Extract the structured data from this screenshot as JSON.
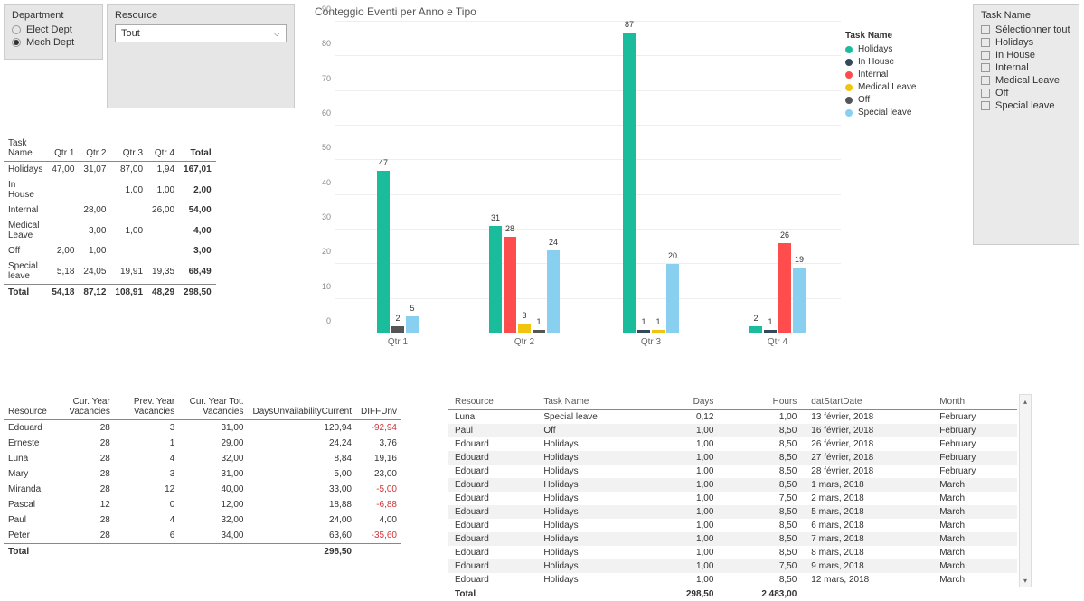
{
  "slicers": {
    "department": {
      "title": "Department",
      "options": [
        {
          "label": "Elect Dept",
          "selected": false
        },
        {
          "label": "Mech Dept",
          "selected": true
        }
      ]
    },
    "resource": {
      "title": "Resource",
      "selected": "Tout"
    },
    "taskname": {
      "title": "Task Name",
      "items": [
        "Sélectionner tout",
        "Holidays",
        "In House",
        "Internal",
        "Medical Leave",
        "Off",
        "Special leave"
      ]
    }
  },
  "pivot": {
    "headers": [
      "Task Name",
      "Qtr 1",
      "Qtr 2",
      "Qtr 3",
      "Qtr 4",
      "Total"
    ],
    "rows": [
      {
        "name": "Holidays",
        "q": [
          "47,00",
          "31,07",
          "87,00",
          "1,94"
        ],
        "total": "167,01"
      },
      {
        "name": "In House",
        "q": [
          "",
          "",
          "1,00",
          "1,00"
        ],
        "total": "2,00"
      },
      {
        "name": "Internal",
        "q": [
          "",
          "28,00",
          "",
          "26,00"
        ],
        "total": "54,00"
      },
      {
        "name": "Medical Leave",
        "q": [
          "",
          "3,00",
          "1,00",
          ""
        ],
        "total": "4,00"
      },
      {
        "name": "Off",
        "q": [
          "2,00",
          "1,00",
          "",
          ""
        ],
        "total": "3,00"
      },
      {
        "name": "Special leave",
        "q": [
          "5,18",
          "24,05",
          "19,91",
          "19,35"
        ],
        "total": "68,49"
      }
    ],
    "total": {
      "name": "Total",
      "q": [
        "54,18",
        "87,12",
        "108,91",
        "48,29"
      ],
      "total": "298,50"
    }
  },
  "vacancies": {
    "headers": [
      "Resource",
      "Cur. Year Vacancies",
      "Prev. Year Vacancies",
      "Cur. Year Tot. Vacancies",
      "DaysUnvailabilityCurrent",
      "DIFFUnv"
    ],
    "rows": [
      {
        "c": [
          "Edouard",
          "28",
          "3",
          "31,00",
          "120,94",
          "-92,94"
        ],
        "neg": [
          5
        ]
      },
      {
        "c": [
          "Erneste",
          "28",
          "1",
          "29,00",
          "24,24",
          "3,76"
        ],
        "neg": []
      },
      {
        "c": [
          "Luna",
          "28",
          "4",
          "32,00",
          "8,84",
          "19,16"
        ],
        "neg": []
      },
      {
        "c": [
          "Mary",
          "28",
          "3",
          "31,00",
          "5,00",
          "23,00"
        ],
        "neg": []
      },
      {
        "c": [
          "Miranda",
          "28",
          "12",
          "40,00",
          "33,00",
          "-5,00"
        ],
        "neg": [
          5
        ]
      },
      {
        "c": [
          "Pascal",
          "12",
          "0",
          "12,00",
          "18,88",
          "-6,88"
        ],
        "neg": [
          5
        ]
      },
      {
        "c": [
          "Paul",
          "28",
          "4",
          "32,00",
          "24,00",
          "4,00"
        ],
        "neg": []
      },
      {
        "c": [
          "Peter",
          "28",
          "6",
          "34,00",
          "63,60",
          "-35,60"
        ],
        "neg": [
          5
        ]
      }
    ],
    "total": {
      "c": [
        "Total",
        "",
        "",
        "",
        "298,50",
        ""
      ]
    }
  },
  "detail": {
    "headers": [
      "Resource",
      "Task Name",
      "Days",
      "Hours",
      "datStartDate",
      "Month"
    ],
    "rows": [
      [
        "Luna",
        "Special leave",
        "0,12",
        "1,00",
        "13 février, 2018",
        "February"
      ],
      [
        "Paul",
        "Off",
        "1,00",
        "8,50",
        "16 février, 2018",
        "February"
      ],
      [
        "Edouard",
        "Holidays",
        "1,00",
        "8,50",
        "26 février, 2018",
        "February"
      ],
      [
        "Edouard",
        "Holidays",
        "1,00",
        "8,50",
        "27 février, 2018",
        "February"
      ],
      [
        "Edouard",
        "Holidays",
        "1,00",
        "8,50",
        "28 février, 2018",
        "February"
      ],
      [
        "Edouard",
        "Holidays",
        "1,00",
        "8,50",
        "1 mars, 2018",
        "March"
      ],
      [
        "Edouard",
        "Holidays",
        "1,00",
        "7,50",
        "2 mars, 2018",
        "March"
      ],
      [
        "Edouard",
        "Holidays",
        "1,00",
        "8,50",
        "5 mars, 2018",
        "March"
      ],
      [
        "Edouard",
        "Holidays",
        "1,00",
        "8,50",
        "6 mars, 2018",
        "March"
      ],
      [
        "Edouard",
        "Holidays",
        "1,00",
        "8,50",
        "7 mars, 2018",
        "March"
      ],
      [
        "Edouard",
        "Holidays",
        "1,00",
        "8,50",
        "8 mars, 2018",
        "March"
      ],
      [
        "Edouard",
        "Holidays",
        "1,00",
        "7,50",
        "9 mars, 2018",
        "March"
      ],
      [
        "Edouard",
        "Holidays",
        "1,00",
        "8,50",
        "12 mars, 2018",
        "March"
      ]
    ],
    "total": [
      "Total",
      "",
      "298,50",
      "2 483,00",
      "",
      ""
    ]
  },
  "chart": {
    "title": "Conteggio Eventi per Anno e Tipo",
    "legend_title": "Task Name",
    "ymax": 90,
    "ytick": 10,
    "colors": {
      "Holidays": "#1abc9c",
      "In House": "#34495e",
      "Internal": "#ff4d4d",
      "Medical Leave": "#f1c40f",
      "Off": "#555555",
      "Special leave": "#89cff0"
    },
    "legend_order": [
      "Holidays",
      "In House",
      "Internal",
      "Medical Leave",
      "Off",
      "Special leave"
    ],
    "quarters": [
      {
        "label": "Qtr 1",
        "bars": [
          {
            "task": "Holidays",
            "v": 47
          },
          {
            "task": "Off",
            "v": 2
          },
          {
            "task": "Special leave",
            "v": 5
          }
        ]
      },
      {
        "label": "Qtr 2",
        "bars": [
          {
            "task": "Holidays",
            "v": 31
          },
          {
            "task": "Internal",
            "v": 28
          },
          {
            "task": "Medical Leave",
            "v": 3
          },
          {
            "task": "Off",
            "v": 1
          },
          {
            "task": "Special leave",
            "v": 24
          }
        ]
      },
      {
        "label": "Qtr 3",
        "bars": [
          {
            "task": "Holidays",
            "v": 87
          },
          {
            "task": "In House",
            "v": 1
          },
          {
            "task": "Medical Leave",
            "v": 1
          },
          {
            "task": "Special leave",
            "v": 20
          }
        ]
      },
      {
        "label": "Qtr 4",
        "bars": [
          {
            "task": "Holidays",
            "v": 2
          },
          {
            "task": "In House",
            "v": 1
          },
          {
            "task": "Internal",
            "v": 26
          },
          {
            "task": "Special leave",
            "v": 19
          }
        ]
      }
    ]
  }
}
